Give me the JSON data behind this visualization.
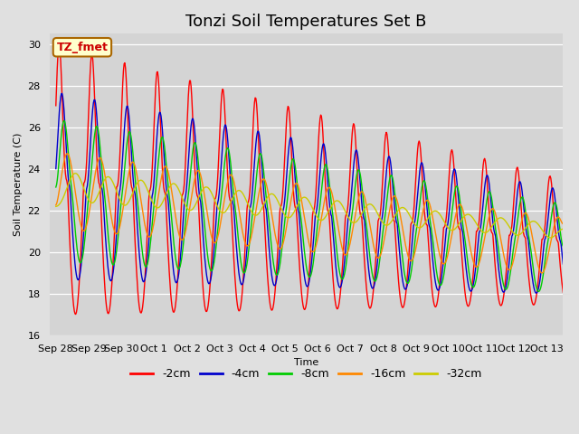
{
  "title": "Tonzi Soil Temperatures Set B",
  "xlabel": "Time",
  "ylabel": "Soil Temperature (C)",
  "ylim": [
    16,
    30.5
  ],
  "xlim": [
    -0.2,
    15.5
  ],
  "annotation_text": "TZ_fmet",
  "series_colors": [
    "#ff0000",
    "#0000cc",
    "#00cc00",
    "#ff8800",
    "#cccc00"
  ],
  "series_labels": [
    "-2cm",
    "-4cm",
    "-8cm",
    "-16cm",
    "-32cm"
  ],
  "xtick_labels": [
    "Sep 28",
    "Sep 29",
    "Sep 30",
    "Oct 1",
    "Oct 2",
    "Oct 3",
    "Oct 4",
    "Oct 5",
    "Oct 6",
    "Oct 7",
    "Oct 8",
    "Oct 9",
    "Oct 10",
    "Oct 11",
    "Oct 12",
    "Oct 13"
  ],
  "xtick_positions": [
    0,
    1,
    2,
    3,
    4,
    5,
    6,
    7,
    8,
    9,
    10,
    11,
    12,
    13,
    14,
    15
  ],
  "bg_color": "#e0e0e0",
  "plot_bg_color": "#e0e0e0",
  "inner_bg_color": "#d4d4d4",
  "grid_color": "#ffffff",
  "title_fontsize": 13,
  "legend_fontsize": 9,
  "axis_fontsize": 8
}
